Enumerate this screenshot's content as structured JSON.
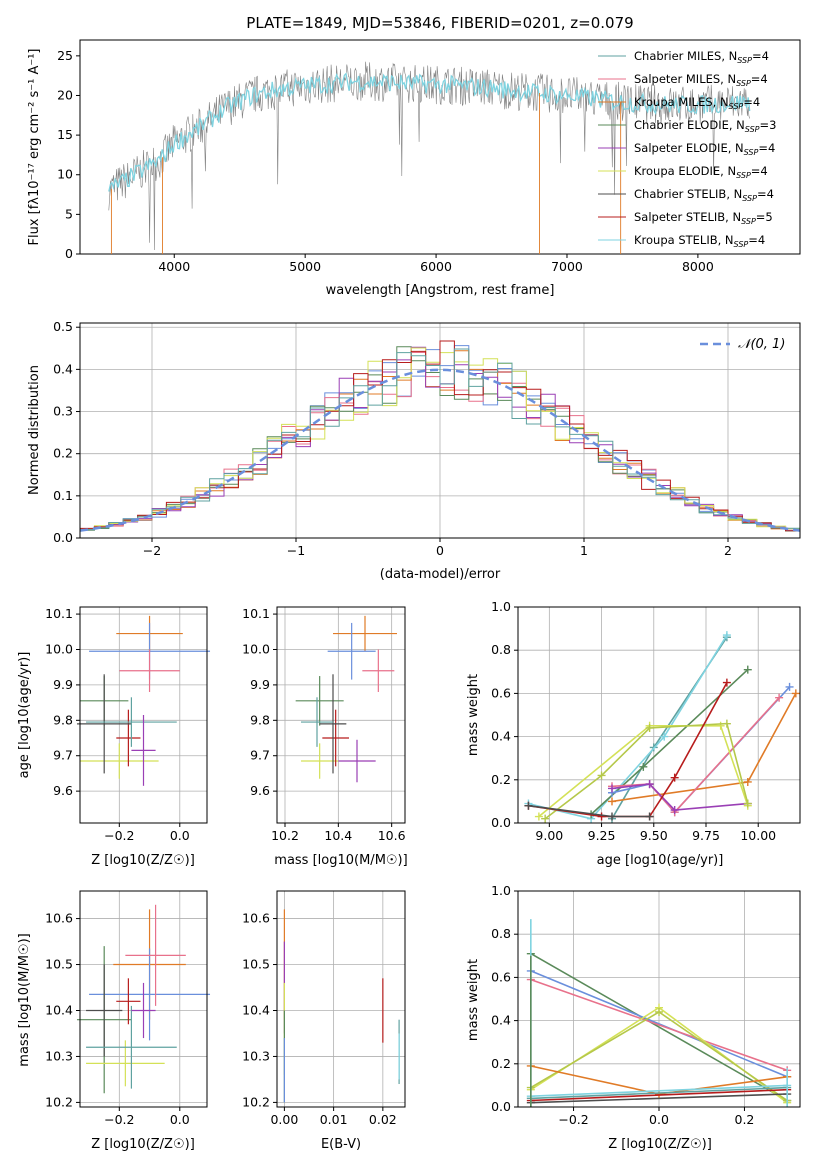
{
  "figure_title": "PLATE=1849, MJD=53846, FIBERID=0201, z=0.079",
  "colors": {
    "chabrier_miles": "#5fa2a0",
    "salpeter_miles": "#e8718b",
    "kroupa_miles": "#e07b27",
    "chabrier_elodie": "#5a8a5a",
    "salpeter_elodie": "#9a3fb5",
    "kroupa_elodie": "#d4e157",
    "chabrier_stelib": "#4d4d4d",
    "salpeter_stelib": "#b71c1c",
    "kroupa_stelib": "#7fd3e0",
    "fit_blue": "#6a8fdc",
    "gauss": "#6a8fdc"
  },
  "chart_data": [
    {
      "type": "line",
      "panel": "spectrum",
      "title": "PLATE=1849, MJD=53846, FIBERID=0201, z=0.079",
      "xlabel": "wavelength [Angstrom, rest frame]",
      "ylabel": "Flux [fλ10⁻¹⁷ erg cm⁻² s⁻¹ A⁻¹]",
      "xlim": [
        3280,
        8780
      ],
      "ylim": [
        0,
        27
      ],
      "xticks": [
        4000,
        5000,
        6000,
        7000,
        8000
      ],
      "yticks": [
        0,
        5,
        10,
        15,
        20,
        25
      ],
      "grid": false,
      "legend_position": "top-right",
      "continuum": {
        "x": [
          3500,
          3700,
          3900,
          4000,
          4200,
          4400,
          4600,
          4800,
          5000,
          5200,
          5400,
          5600,
          5800,
          6000,
          6200,
          6400,
          6600,
          6800,
          7000,
          7200,
          7400,
          7600,
          7800,
          8000,
          8200,
          8400
        ],
        "y": [
          8,
          10,
          12,
          14,
          16,
          18.5,
          20,
          20.8,
          21.2,
          21.5,
          21.8,
          21.7,
          21.5,
          21.4,
          21.2,
          21,
          20.6,
          20.3,
          20,
          19.6,
          19.2,
          19,
          18.8,
          18.8,
          19,
          19.2
        ]
      },
      "legend": [
        "Chabrier MILES, N_SSP=4",
        "Salpeter MILES, N_SSP=4",
        "Kroupa MILES, N_SSP=4",
        "Chabrier ELODIE, N_SSP=3",
        "Salpeter ELODIE, N_SSP=4",
        "Kroupa ELODIE, N_SSP=4",
        "Chabrier STELIB, N_SSP=4",
        "Salpeter STELIB, N_SSP=5",
        "Kroupa STELIB, N_SSP=4"
      ]
    },
    {
      "type": "area",
      "panel": "residuals",
      "xlabel": "(data-model)/error",
      "ylabel": "Normed distribution",
      "xlim": [
        -2.5,
        2.5
      ],
      "ylim": [
        0,
        0.51
      ],
      "xticks": [
        -2,
        -1,
        0,
        1,
        2
      ],
      "yticks": [
        0.0,
        0.1,
        0.2,
        0.3,
        0.4,
        0.5
      ],
      "grid": true,
      "legend_position": "top-right",
      "gauss_label": "𝒩(0, 1)"
    },
    {
      "type": "scatter",
      "panel": "age_vs_Z",
      "xlabel": "Z [log10(Z/Z☉)]",
      "ylabel": "age [log10(age/yr)]",
      "xlim": [
        -0.33,
        0.09
      ],
      "ylim": [
        9.51,
        10.12
      ],
      "xticks": [
        -0.2,
        0.0
      ],
      "yticks": [
        9.6,
        9.7,
        9.8,
        9.9,
        10.0,
        10.1
      ],
      "grid": true
    },
    {
      "type": "scatter",
      "panel": "age_vs_mass",
      "xlabel": "mass [log10(M/M☉)]",
      "ylabel": "",
      "xlim": [
        10.17,
        10.65
      ],
      "ylim": [
        9.51,
        10.12
      ],
      "xticks": [
        10.2,
        10.4,
        10.6
      ],
      "yticks": [
        9.6,
        9.7,
        9.8,
        9.9,
        10.0,
        10.1
      ],
      "grid": true
    },
    {
      "type": "line",
      "panel": "weight_vs_age",
      "xlabel": "age [log10(age/yr)]",
      "ylabel": "mass weight",
      "xlim": [
        8.85,
        10.2
      ],
      "ylim": [
        0,
        1
      ],
      "xticks": [
        9.0,
        9.25,
        9.5,
        9.75,
        10.0
      ],
      "yticks": [
        0.0,
        0.2,
        0.4,
        0.6,
        0.8,
        1.0
      ],
      "grid": true,
      "series": [
        {
          "color": "#5fa2a0",
          "x": [
            9.3,
            9.5,
            9.85
          ],
          "y": [
            0.02,
            0.35,
            0.86
          ]
        },
        {
          "color": "#7fd3e0",
          "x": [
            8.9,
            9.2,
            9.55,
            9.85
          ],
          "y": [
            0.09,
            0.02,
            0.4,
            0.87
          ]
        },
        {
          "color": "#5a8a5a",
          "x": [
            9.2,
            9.45,
            9.95
          ],
          "y": [
            0.04,
            0.26,
            0.71
          ]
        },
        {
          "color": "#6a8fdc",
          "x": [
            9.3,
            9.48,
            9.6,
            10.15
          ],
          "y": [
            0.14,
            0.18,
            0.05,
            0.63
          ]
        },
        {
          "color": "#e07b27",
          "x": [
            9.3,
            9.95,
            10.18
          ],
          "y": [
            0.1,
            0.19,
            0.6
          ]
        },
        {
          "color": "#e8718b",
          "x": [
            9.3,
            9.48,
            9.6,
            10.1
          ],
          "y": [
            0.17,
            0.18,
            0.05,
            0.58
          ]
        },
        {
          "color": "#9a3fb5",
          "x": [
            9.3,
            9.48,
            9.6,
            9.95
          ],
          "y": [
            0.16,
            0.18,
            0.06,
            0.09
          ]
        },
        {
          "color": "#d4e157",
          "x": [
            8.95,
            9.48,
            9.82,
            9.95
          ],
          "y": [
            0.03,
            0.45,
            0.45,
            0.08
          ]
        },
        {
          "color": "#b5c84a",
          "x": [
            8.98,
            9.25,
            9.48,
            9.85,
            9.95
          ],
          "y": [
            0.02,
            0.22,
            0.44,
            0.46,
            0.09
          ]
        },
        {
          "color": "#b71c1c",
          "x": [
            8.9,
            9.25,
            9.48,
            9.6,
            9.85
          ],
          "y": [
            0.08,
            0.03,
            0.03,
            0.21,
            0.65
          ]
        },
        {
          "color": "#4d4d4d",
          "x": [
            8.9,
            9.3,
            9.48
          ],
          "y": [
            0.08,
            0.03,
            0.03
          ]
        }
      ]
    },
    {
      "type": "scatter",
      "panel": "mass_vs_Z",
      "xlabel": "Z [log10(Z/Z☉)]",
      "ylabel": "mass [log10(M/M☉)]",
      "xlim": [
        -0.33,
        0.09
      ],
      "ylim": [
        10.19,
        10.66
      ],
      "xticks": [
        -0.2,
        0.0
      ],
      "yticks": [
        10.2,
        10.3,
        10.4,
        10.5,
        10.6
      ],
      "grid": true
    },
    {
      "type": "scatter",
      "panel": "mass_vs_ebv",
      "xlabel": "E(B-V)",
      "ylabel": "",
      "xlim": [
        -0.0015,
        0.0245
      ],
      "ylim": [
        10.19,
        10.66
      ],
      "xticks": [
        0.0,
        0.01,
        0.02
      ],
      "yticks": [
        10.2,
        10.3,
        10.4,
        10.5,
        10.6
      ],
      "grid": true
    },
    {
      "type": "line",
      "panel": "weight_vs_Z",
      "xlabel": "Z [log10(Z/Z☉)]",
      "ylabel": "mass weight",
      "xlim": [
        -0.33,
        0.33
      ],
      "ylim": [
        0,
        1
      ],
      "xticks": [
        -0.2,
        0.0,
        0.2
      ],
      "yticks": [
        0.0,
        0.2,
        0.4,
        0.6,
        0.8,
        1.0
      ],
      "grid": true,
      "series": [
        {
          "color": "#5a8a5a",
          "x": [
            -0.3,
            0.3
          ],
          "y": [
            0.71,
            0.03
          ]
        },
        {
          "color": "#6a8fdc",
          "x": [
            -0.3,
            0.3
          ],
          "y": [
            0.63,
            0.14
          ]
        },
        {
          "color": "#e8718b",
          "x": [
            -0.3,
            0.3
          ],
          "y": [
            0.59,
            0.17
          ]
        },
        {
          "color": "#d4e157",
          "x": [
            -0.3,
            0.0,
            0.3
          ],
          "y": [
            0.08,
            0.46,
            0.02
          ]
        },
        {
          "color": "#b5c84a",
          "x": [
            -0.3,
            0.0,
            0.3
          ],
          "y": [
            0.09,
            0.44,
            0.03
          ]
        },
        {
          "color": "#e07b27",
          "x": [
            -0.3,
            0.0,
            0.3
          ],
          "y": [
            0.19,
            0.06,
            0.14
          ]
        },
        {
          "color": "#b71c1c",
          "x": [
            -0.3,
            0.3
          ],
          "y": [
            0.03,
            0.08
          ]
        },
        {
          "color": "#4d4d4d",
          "x": [
            -0.3,
            0.3
          ],
          "y": [
            0.02,
            0.06
          ]
        },
        {
          "color": "#5fa2a0",
          "x": [
            -0.3,
            0.3
          ],
          "y": [
            0.04,
            0.09
          ]
        },
        {
          "color": "#7fd3e0",
          "x": [
            -0.3,
            0.3
          ],
          "y": [
            0.05,
            0.1
          ]
        }
      ]
    }
  ]
}
